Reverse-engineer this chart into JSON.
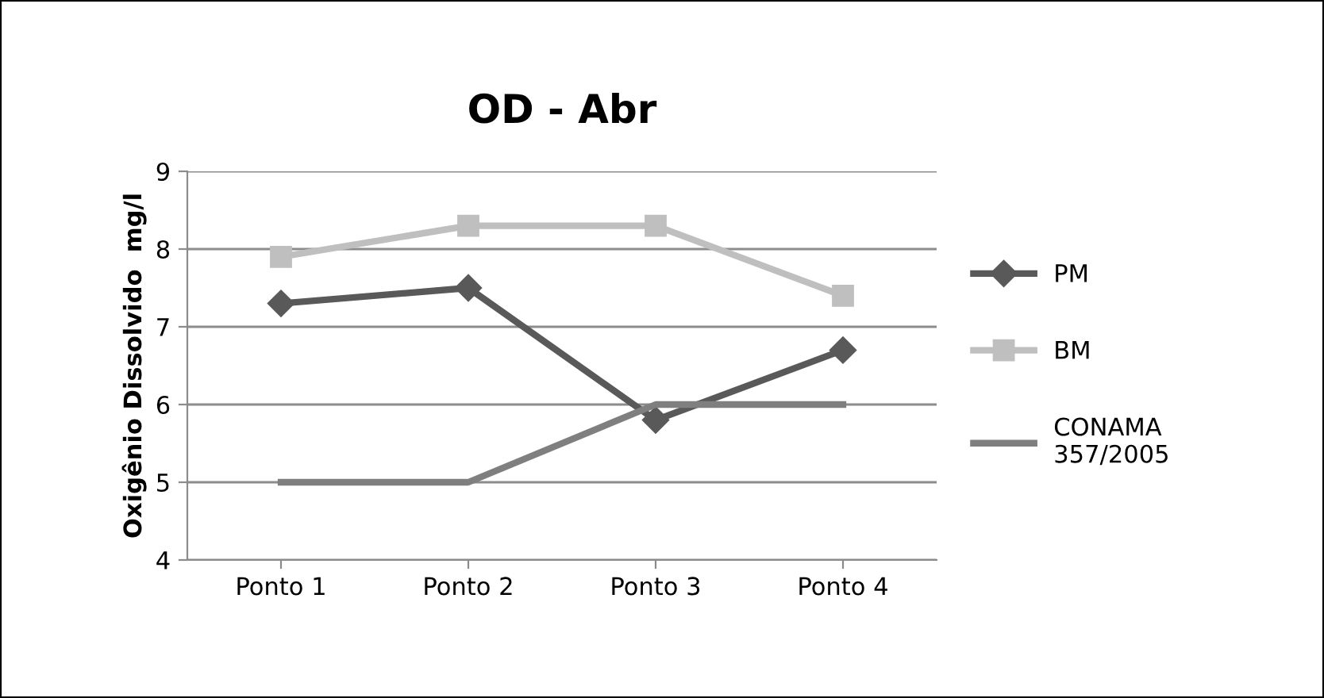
{
  "chart_data": {
    "type": "line",
    "title": "OD - Abr",
    "ylabel": "Oxigênio Dissolvido  mg/l",
    "categories": [
      "Ponto 1",
      "Ponto 2",
      "Ponto 3",
      "Ponto 4"
    ],
    "series": [
      {
        "name": "PM",
        "color": "#595959",
        "marker": "diamond",
        "values": [
          7.3,
          7.5,
          5.8,
          6.7
        ]
      },
      {
        "name": "BM",
        "color": "#bfbfbf",
        "marker": "square",
        "values": [
          7.9,
          8.3,
          8.3,
          7.4
        ]
      },
      {
        "name": "CONAMA\n357/2005",
        "color": "#7f7f7f",
        "marker": "none",
        "values": [
          5,
          5,
          6,
          6
        ]
      }
    ],
    "ylim": [
      4,
      9
    ],
    "yticks": [
      4,
      5,
      6,
      7,
      8,
      9
    ],
    "grid": "y",
    "legend": "right"
  }
}
